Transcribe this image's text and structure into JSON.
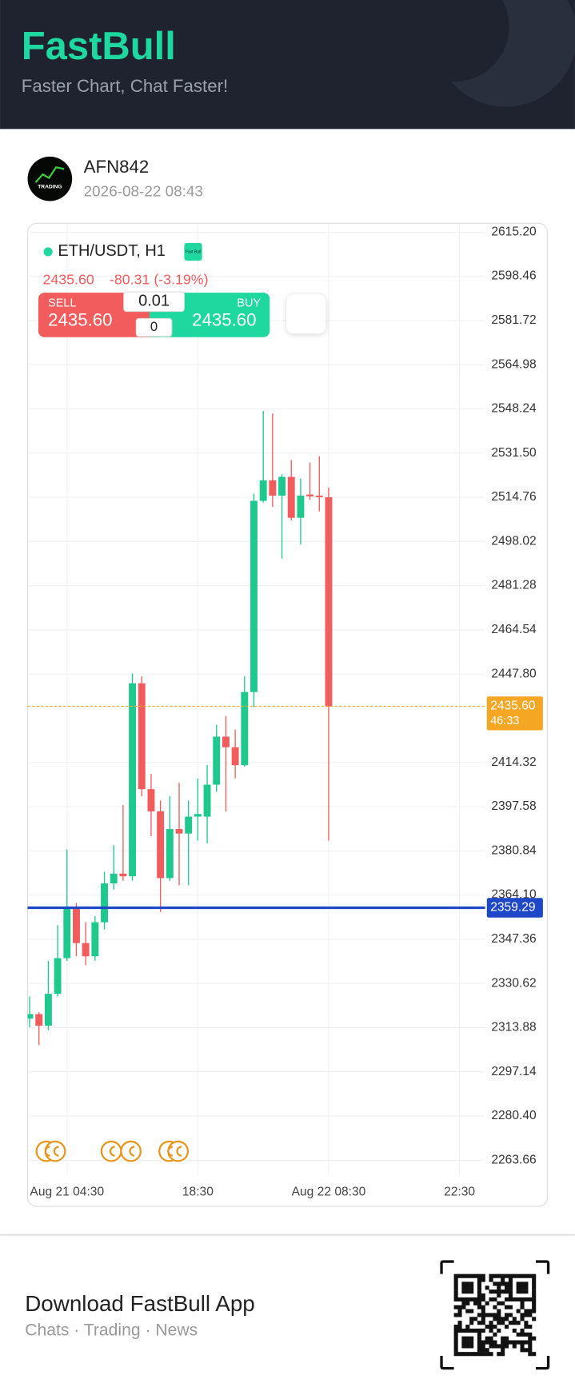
{
  "header": {
    "brand": "FastBull",
    "tagline": "Faster Chart, Chat Faster!"
  },
  "post": {
    "author": "AFN842",
    "timestamp": "2026-08-22 08:43",
    "avatar_text": "TRADING"
  },
  "instrument": {
    "symbol": "ETH/USDT, H1",
    "price": "2435.60",
    "change": "-80.31 (-3.19%)",
    "badge": "Fast Bull"
  },
  "trade_panel": {
    "sell_label": "SELL",
    "sell_price": "2435.60",
    "buy_label": "BUY",
    "buy_price": "2435.60",
    "lot": "0.01",
    "spread": "0"
  },
  "chart_data": {
    "type": "candlestick",
    "up_color": "#1fc98e",
    "down_color": "#f25c5c",
    "grid": true,
    "categories": [
      null,
      null,
      null,
      null,
      "Aug 21 04:30",
      null,
      null,
      null,
      null,
      null,
      null,
      null,
      null,
      null,
      null,
      null,
      null,
      null,
      "18:30",
      null,
      null,
      null,
      null,
      null,
      null,
      null,
      null,
      null,
      null,
      null,
      null,
      null,
      "Aug 22 08:30",
      null,
      null,
      null,
      null,
      null,
      null,
      null,
      null,
      null,
      null,
      null,
      null,
      null,
      "22:30",
      null,
      null
    ],
    "open": [
      2317.3,
      2319.0,
      2314.6,
      2326.7,
      2340.2,
      2359.4,
      2345.9,
      2340.9,
      2353.8,
      2368.5,
      2372.2,
      2371.2,
      2444.3,
      2404.2,
      2395.8,
      2370.5,
      2389.1,
      2387.4,
      2393.8,
      2393.8,
      2405.9,
      2424.1,
      2420.1,
      2413.3,
      2441.0,
      2513.4,
      2521.2,
      2515.4,
      2522.5,
      2507.0,
      2515.8,
      2515.4,
      2514.8,
      null,
      null,
      null,
      null,
      null,
      null,
      null,
      null,
      null,
      null,
      null,
      null,
      null,
      null,
      null,
      null
    ],
    "high": [
      2325.7,
      2319.7,
      2339.2,
      2352.7,
      2381.3,
      2361.1,
      2353.8,
      2356.1,
      2372.9,
      2383.0,
      2398.2,
      2448.0,
      2447.0,
      2410.0,
      2399.9,
      2401.5,
      2406.6,
      2399.9,
      2408.3,
      2413.3,
      2428.5,
      2431.9,
      2426.8,
      2447.0,
      2516.1,
      2547.5,
      2546.5,
      2523.5,
      2528.9,
      2521.9,
      2527.9,
      2530.3,
      2518.5,
      null,
      null,
      null,
      null,
      null,
      null,
      null,
      null,
      null,
      null,
      null,
      null,
      null,
      null,
      null,
      null
    ],
    "low": [
      2314.0,
      2307.2,
      2312.9,
      2325.7,
      2339.2,
      2340.9,
      2337.5,
      2339.2,
      2351.0,
      2366.2,
      2369.5,
      2369.5,
      2401.5,
      2386.4,
      2357.7,
      2369.5,
      2367.8,
      2367.8,
      2384.7,
      2383.7,
      2403.2,
      2395.8,
      2408.3,
      2412.7,
      2435.2,
      2512.8,
      2511.1,
      2491.5,
      2506.0,
      2496.9,
      2513.8,
      2509.4,
      2384.7,
      null,
      null,
      null,
      null,
      null,
      null,
      null,
      null,
      null,
      null,
      null,
      null,
      null,
      null,
      null,
      null
    ],
    "close": [
      2319.0,
      2314.6,
      2326.7,
      2340.2,
      2359.4,
      2345.9,
      2340.9,
      2353.8,
      2368.5,
      2372.2,
      2371.2,
      2444.3,
      2404.2,
      2395.8,
      2370.5,
      2389.1,
      2387.4,
      2393.8,
      2394.8,
      2405.9,
      2424.1,
      2420.1,
      2413.3,
      2441.0,
      2513.4,
      2521.2,
      2515.4,
      2522.5,
      2507.0,
      2515.4,
      2515.1,
      2514.8,
      2435.6,
      null,
      null,
      null,
      null,
      null,
      null,
      null,
      null,
      null,
      null,
      null,
      null,
      null,
      null,
      null,
      null
    ],
    "ylim": [
      2258.3,
      2618.2
    ],
    "yticks": [
      {
        "value": 2615.2,
        "label": "2615.20"
      },
      {
        "value": 2598.46,
        "label": "2598.46"
      },
      {
        "value": 2581.72,
        "label": "2581.72"
      },
      {
        "value": 2564.98,
        "label": "2564.98"
      },
      {
        "value": 2548.24,
        "label": "2548.24"
      },
      {
        "value": 2531.5,
        "label": "2531.50"
      },
      {
        "value": 2514.76,
        "label": "2514.76"
      },
      {
        "value": 2498.02,
        "label": "2498.02"
      },
      {
        "value": 2481.28,
        "label": "2481.28"
      },
      {
        "value": 2464.54,
        "label": "2464.54"
      },
      {
        "value": 2447.8,
        "label": "2447.80"
      },
      {
        "value": 2414.32,
        "label": "2414.32"
      },
      {
        "value": 2397.58,
        "label": "2397.58"
      },
      {
        "value": 2380.84,
        "label": "2380.84"
      },
      {
        "value": 2364.1,
        "label": "2364.10"
      },
      {
        "value": 2347.36,
        "label": "2347.36"
      },
      {
        "value": 2330.62,
        "label": "2330.62"
      },
      {
        "value": 2313.88,
        "label": "2313.88"
      },
      {
        "value": 2297.14,
        "label": "2297.14"
      },
      {
        "value": 2280.4,
        "label": "2280.40"
      },
      {
        "value": 2263.66,
        "label": "2263.66"
      }
    ],
    "price_lines": [
      {
        "value": 2435.6,
        "label": "2435.60",
        "sublabel": "46:33",
        "color": "#f5a623",
        "style": "dashed"
      },
      {
        "value": 2359.29,
        "label": "2359.29",
        "color": "#1f48c8",
        "style": "solid"
      }
    ]
  },
  "footer": {
    "title": "Download FastBull App",
    "subtitle": "Chats · Trading · News"
  }
}
